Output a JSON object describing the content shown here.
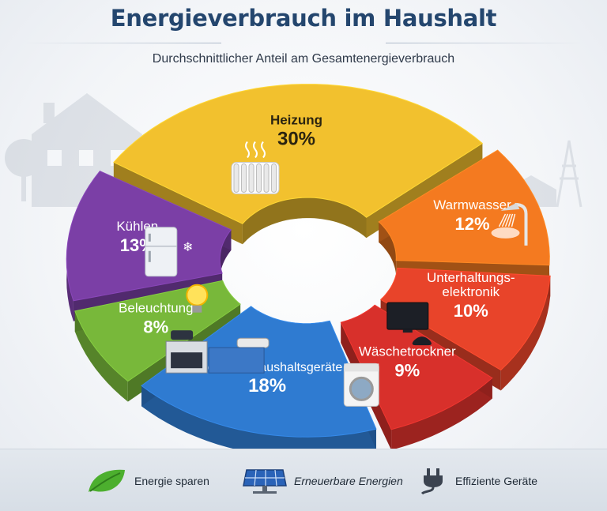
{
  "header": {
    "title": "Energieverbrauch im Haushalt",
    "subtitle": "Durchschnittlicher Anteil am Gesamtenergieverbrauch"
  },
  "chart_data": {
    "type": "pie",
    "title": "Energieverbrauch im Haushalt",
    "subtitle": "Durchschnittlicher Anteil am Gesamtenergieverbrauch",
    "unit": "%",
    "style": "3d-donut",
    "categories": [
      "Heizung",
      "Warmwasser",
      "Unterhaltungselektronik",
      "Wäschetrockner",
      "Kochen & Haushaltsgeräte",
      "Beleuchtung",
      "Kühlen"
    ],
    "label_lines": [
      [
        "Heizung"
      ],
      [
        "Warmwasser"
      ],
      [
        "Unterhaltungs-",
        "elektronik"
      ],
      [
        "Wäschetrockner"
      ],
      [
        "Kochen & Haushaltsgeräte"
      ],
      [
        "Beleuchtung"
      ],
      [
        "Kühlen"
      ]
    ],
    "value_labels": [
      "30%",
      "12%",
      "10%",
      "9%",
      "18%",
      "8%",
      "13%"
    ],
    "values": [
      30,
      12,
      10,
      9,
      18,
      8,
      13
    ],
    "icons": [
      "radiator-icon",
      "shower-icon",
      "tv-icon",
      "washing-machine-icon",
      "stove-icon",
      "lightbulb-icon",
      "fridge-icon"
    ],
    "colors": [
      "#f2c12e",
      "#f47a20",
      "#e8442a",
      "#d8302b",
      "#2f7bd1",
      "#78b83a",
      "#7b3fa6"
    ]
  },
  "footer": {
    "items": [
      {
        "label": "Energie sparen",
        "icon": "leaf-icon",
        "color": "#4caf2e"
      },
      {
        "label": "Erneuerbare Energien",
        "icon": "solar-panel-icon",
        "color": "#2a63b8"
      },
      {
        "label": "Effiziente Geräte",
        "icon": "plug-icon",
        "color": "#3b4350"
      }
    ]
  }
}
